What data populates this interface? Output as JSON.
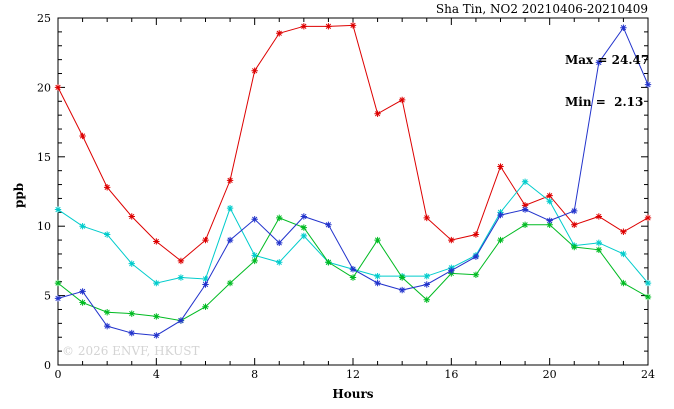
{
  "watermark": "© 2026 ENVF, HKUST",
  "chart_data": {
    "type": "line",
    "title": "Sha Tin, NO2 20210406-20210409",
    "xlabel": "Hours",
    "ylabel": "ppb",
    "xlim": [
      0,
      24
    ],
    "ylim": [
      0,
      25
    ],
    "x_major_ticks": [
      0,
      4,
      8,
      12,
      16,
      20,
      24
    ],
    "y_major_ticks": [
      0,
      5,
      10,
      15,
      20,
      25
    ],
    "x_minor_step": 1,
    "y_minor_step": 1,
    "grid": false,
    "legend": "none",
    "marker": "asterisk",
    "annotations": {
      "max": "Max = 24.47",
      "min": "Min =  2.13"
    },
    "x": [
      0,
      1,
      2,
      3,
      4,
      5,
      6,
      7,
      8,
      9,
      10,
      11,
      12,
      13,
      14,
      15,
      16,
      17,
      18,
      19,
      20,
      21,
      22,
      23,
      24
    ],
    "series": [
      {
        "name": "red",
        "color": "#dd0000",
        "values": [
          20.0,
          16.5,
          12.8,
          10.7,
          8.9,
          7.5,
          9.0,
          13.3,
          21.2,
          23.9,
          24.4,
          24.4,
          24.47,
          18.1,
          19.1,
          10.6,
          9.0,
          9.4,
          14.3,
          11.5,
          12.2,
          10.1,
          10.7,
          9.6,
          10.6
        ]
      },
      {
        "name": "cyan",
        "color": "#00cccc",
        "values": [
          11.2,
          10.0,
          9.4,
          7.3,
          5.9,
          6.3,
          6.2,
          11.3,
          7.9,
          7.4,
          9.3,
          7.4,
          6.9,
          6.4,
          6.4,
          6.4,
          7.0,
          7.9,
          11.0,
          13.2,
          11.8,
          8.6,
          8.8,
          8.0,
          5.9
        ]
      },
      {
        "name": "green",
        "color": "#00bb22",
        "values": [
          5.9,
          4.5,
          3.8,
          3.7,
          3.5,
          3.2,
          4.2,
          5.9,
          7.5,
          10.6,
          9.9,
          7.4,
          6.3,
          9.0,
          6.3,
          4.7,
          6.6,
          6.5,
          9.0,
          10.1,
          10.1,
          8.5,
          8.3,
          5.9,
          4.9
        ]
      },
      {
        "name": "blue",
        "color": "#2233cc",
        "values": [
          4.8,
          5.3,
          2.8,
          2.3,
          2.13,
          3.2,
          5.8,
          9.0,
          10.5,
          8.8,
          10.7,
          10.1,
          6.9,
          5.9,
          5.4,
          5.8,
          6.8,
          7.8,
          10.8,
          11.2,
          10.4,
          11.1,
          21.8,
          24.3,
          20.2
        ]
      }
    ]
  }
}
